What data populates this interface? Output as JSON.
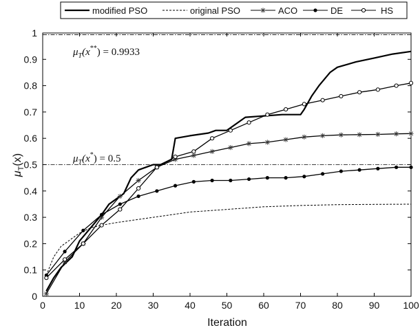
{
  "chart_data": {
    "type": "line",
    "title": "",
    "xlabel": "Iteration",
    "ylabel": "μT(x)",
    "ylabel_main": "μ",
    "ylabel_sub": "T",
    "ylabel_tail": "(x)",
    "xlim": [
      0,
      100
    ],
    "ylim": [
      0,
      1
    ],
    "xticks": [
      0,
      10,
      20,
      30,
      40,
      50,
      60,
      70,
      80,
      90,
      100
    ],
    "yticks": [
      0,
      0.1,
      0.2,
      0.3,
      0.4,
      0.5,
      0.6,
      0.7,
      0.8,
      0.9,
      1
    ],
    "grid": false,
    "legend_position": "top (outside)",
    "reference_lines": [
      {
        "y": 0.9933,
        "label": "μT(x**) = 0.9933",
        "label_main": "μ",
        "label_sub": "T",
        "label_arg": "(x",
        "label_sup": "**",
        "label_tail": ") = 0.9933",
        "style": "dash-dot"
      },
      {
        "y": 0.5,
        "label": "μT(x*) = 0.5",
        "label_main": "μ",
        "label_sub": "T",
        "label_arg": "(x",
        "label_sup": "*",
        "label_tail": ") = 0.5",
        "style": "dash-dot"
      }
    ],
    "series": [
      {
        "name": "modified PSO",
        "style": "solid-thick",
        "marker": "none",
        "x": [
          1,
          3,
          5,
          8,
          10,
          13,
          16,
          18,
          20,
          22,
          24,
          26,
          28,
          30,
          32,
          35,
          36,
          40,
          45,
          47,
          50,
          55,
          60,
          65,
          70,
          71,
          73,
          75,
          78,
          80,
          85,
          90,
          95,
          100
        ],
        "y": [
          0.02,
          0.07,
          0.11,
          0.15,
          0.21,
          0.26,
          0.31,
          0.35,
          0.37,
          0.39,
          0.45,
          0.48,
          0.49,
          0.5,
          0.5,
          0.52,
          0.6,
          0.61,
          0.62,
          0.63,
          0.63,
          0.68,
          0.685,
          0.69,
          0.69,
          0.71,
          0.76,
          0.8,
          0.85,
          0.87,
          0.89,
          0.905,
          0.92,
          0.93
        ]
      },
      {
        "name": "original PSO",
        "style": "dashed",
        "marker": "none",
        "x": [
          1,
          3,
          5,
          8,
          10,
          13,
          16,
          20,
          25,
          30,
          35,
          40,
          45,
          50,
          55,
          60,
          70,
          80,
          90,
          100
        ],
        "y": [
          0.08,
          0.15,
          0.19,
          0.22,
          0.24,
          0.26,
          0.27,
          0.28,
          0.29,
          0.3,
          0.31,
          0.32,
          0.325,
          0.33,
          0.335,
          0.34,
          0.345,
          0.348,
          0.349,
          0.35
        ]
      },
      {
        "name": "ACO",
        "style": "solid",
        "marker": "star",
        "x": [
          1,
          6,
          11,
          16,
          21,
          26,
          31,
          36,
          41,
          46,
          51,
          56,
          61,
          66,
          71,
          76,
          81,
          86,
          91,
          96,
          100
        ],
        "y": [
          0.01,
          0.13,
          0.2,
          0.3,
          0.38,
          0.44,
          0.49,
          0.52,
          0.535,
          0.55,
          0.565,
          0.58,
          0.585,
          0.595,
          0.605,
          0.61,
          0.613,
          0.614,
          0.615,
          0.617,
          0.618
        ]
      },
      {
        "name": "DE",
        "style": "solid",
        "marker": "filled-dot",
        "x": [
          1,
          6,
          11,
          16,
          21,
          26,
          31,
          36,
          41,
          46,
          51,
          56,
          61,
          66,
          71,
          76,
          81,
          86,
          91,
          96,
          100
        ],
        "y": [
          0.08,
          0.17,
          0.25,
          0.31,
          0.35,
          0.38,
          0.4,
          0.42,
          0.435,
          0.44,
          0.44,
          0.445,
          0.45,
          0.45,
          0.455,
          0.465,
          0.475,
          0.48,
          0.485,
          0.49,
          0.49
        ]
      },
      {
        "name": "HS",
        "style": "solid",
        "marker": "open-circle",
        "x": [
          1,
          6,
          11,
          16,
          21,
          26,
          31,
          36,
          41,
          46,
          51,
          56,
          61,
          66,
          71,
          76,
          81,
          86,
          91,
          96,
          100
        ],
        "y": [
          0.07,
          0.14,
          0.2,
          0.27,
          0.33,
          0.41,
          0.49,
          0.53,
          0.55,
          0.6,
          0.63,
          0.66,
          0.69,
          0.71,
          0.73,
          0.745,
          0.76,
          0.775,
          0.785,
          0.8,
          0.81
        ]
      }
    ]
  }
}
